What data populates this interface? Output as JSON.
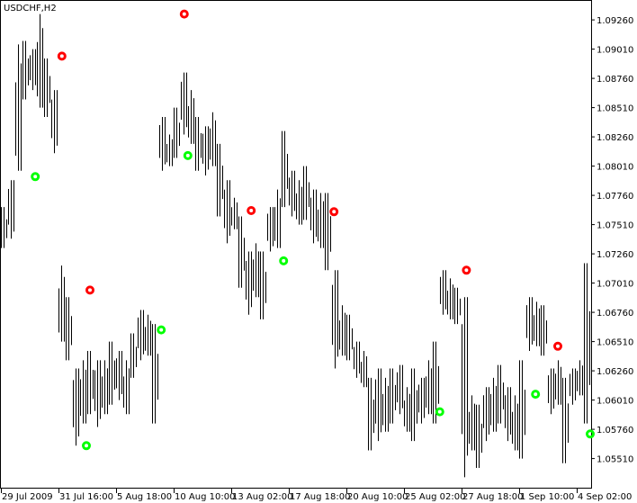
{
  "chart_data": {
    "type": "ohlc",
    "title": "USDCHF,H2",
    "symbol": "USDCHF",
    "timeframe": "H2",
    "ylim": [
      1.0535,
      1.0943
    ],
    "grid": false,
    "colors": {
      "bars": "#000000",
      "sell_marker": "#ff0000",
      "buy_marker": "#00ff00",
      "background": "#ffffff"
    },
    "y_ticks": [
      "1.09260",
      "1.09010",
      "1.08760",
      "1.08510",
      "1.08260",
      "1.08010",
      "1.07760",
      "1.07510",
      "1.07260",
      "1.07010",
      "1.06760",
      "1.06510",
      "1.06260",
      "1.06010",
      "1.05760",
      "1.05510"
    ],
    "x_ticks": [
      "29 Jul 2009",
      "31 Jul 16:00",
      "5 Aug 18:00",
      "10 Aug 10:00",
      "13 Aug 02:00",
      "17 Aug 18:00",
      "20 Aug 10:00",
      "25 Aug 02:00",
      "27 Aug 18:00",
      "1 Sep 10:00",
      "4 Sep 02:00"
    ],
    "bars": [
      [
        1.0766,
        1.0731
      ],
      [
        1.0789,
        1.0739
      ],
      [
        1.0905,
        1.0797
      ],
      [
        1.0908,
        1.0858
      ],
      [
        1.0901,
        1.0866
      ],
      [
        1.0931,
        1.0851
      ],
      [
        1.0893,
        1.0843
      ],
      [
        1.0866,
        1.0812
      ],
      [
        1.0716,
        1.0651
      ],
      [
        1.0689,
        1.0635
      ],
      [
        1.0628,
        1.0562
      ],
      [
        1.0635,
        1.0581
      ],
      [
        1.0643,
        1.0589
      ],
      [
        1.0635,
        1.0578
      ],
      [
        1.0635,
        1.0589
      ],
      [
        1.0651,
        1.0597
      ],
      [
        1.0643,
        1.0601
      ],
      [
        1.0635,
        1.0589
      ],
      [
        1.0658,
        1.062
      ],
      [
        1.0678,
        1.0635
      ],
      [
        1.0674,
        1.0639
      ],
      [
        1.0666,
        1.0581
      ],
      [
        1.0843,
        1.0797
      ],
      [
        1.0828,
        1.0801
      ],
      [
        1.0851,
        1.0808
      ],
      [
        1.0881,
        1.0828
      ],
      [
        1.0866,
        1.082
      ],
      [
        1.0843,
        1.0797
      ],
      [
        1.0835,
        1.0793
      ],
      [
        1.0847,
        1.0801
      ],
      [
        1.082,
        1.0758
      ],
      [
        1.0789,
        1.0735
      ],
      [
        1.0774,
        1.0747
      ],
      [
        1.0758,
        1.0697
      ],
      [
        1.0728,
        1.0674
      ],
      [
        1.0735,
        1.0689
      ],
      [
        1.0728,
        1.067
      ],
      [
        1.0766,
        1.0728
      ],
      [
        1.0781,
        1.0731
      ],
      [
        1.0831,
        1.0766
      ],
      [
        1.0797,
        1.0758
      ],
      [
        1.0789,
        1.0751
      ],
      [
        1.0801,
        1.0755
      ],
      [
        1.0781,
        1.0735
      ],
      [
        1.0778,
        1.0731
      ],
      [
        1.0778,
        1.0712
      ],
      [
        1.0712,
        1.0628
      ],
      [
        1.0682,
        1.0639
      ],
      [
        1.0674,
        1.0635
      ],
      [
        1.0651,
        1.062
      ],
      [
        1.0643,
        1.0612
      ],
      [
        1.062,
        1.0558
      ],
      [
        1.0628,
        1.0566
      ],
      [
        1.062,
        1.0574
      ],
      [
        1.0628,
        1.0581
      ],
      [
        1.0631,
        1.0589
      ],
      [
        1.0612,
        1.0574
      ],
      [
        1.0628,
        1.0566
      ],
      [
        1.062,
        1.0581
      ],
      [
        1.0635,
        1.0589
      ],
      [
        1.0651,
        1.0581
      ],
      [
        1.0712,
        1.0674
      ],
      [
        1.0705,
        1.067
      ],
      [
        1.0697,
        1.0666
      ],
      [
        1.0689,
        1.0535
      ],
      [
        1.0605,
        1.0558
      ],
      [
        1.0597,
        1.0543
      ],
      [
        1.0612,
        1.0566
      ],
      [
        1.062,
        1.0574
      ],
      [
        1.0631,
        1.0581
      ],
      [
        1.0612,
        1.0566
      ],
      [
        1.0605,
        1.0558
      ],
      [
        1.0635,
        1.0551
      ],
      [
        1.0689,
        1.0643
      ],
      [
        1.0685,
        1.0647
      ],
      [
        1.0682,
        1.0639
      ],
      [
        1.0628,
        1.0589
      ],
      [
        1.0635,
        1.0597
      ],
      [
        1.062,
        1.0547
      ],
      [
        1.0628,
        1.0597
      ],
      [
        1.0635,
        1.0605
      ],
      [
        1.0718,
        1.0581
      ]
    ],
    "markers": [
      {
        "type": "sell",
        "bar": 25.1,
        "price": 1.0931
      },
      {
        "type": "sell",
        "bar": 8.1,
        "price": 1.0895
      },
      {
        "type": "sell",
        "bar": 12,
        "price": 1.0695
      },
      {
        "type": "sell",
        "bar": 34.4,
        "price": 1.0763
      },
      {
        "type": "sell",
        "bar": 45.9,
        "price": 1.0762
      },
      {
        "type": "sell",
        "bar": 64.3,
        "price": 1.0712
      },
      {
        "type": "sell",
        "bar": 77,
        "price": 1.0647
      },
      {
        "type": "buy",
        "bar": 4.4,
        "price": 1.0792
      },
      {
        "type": "buy",
        "bar": 11.5,
        "price": 1.0562
      },
      {
        "type": "buy",
        "bar": 21.9,
        "price": 1.0661
      },
      {
        "type": "buy",
        "bar": 25.6,
        "price": 1.081
      },
      {
        "type": "buy",
        "bar": 38.9,
        "price": 1.072
      },
      {
        "type": "buy",
        "bar": 60.6,
        "price": 1.0591
      },
      {
        "type": "buy",
        "bar": 73.9,
        "price": 1.0606
      },
      {
        "type": "buy",
        "bar": 81.5,
        "price": 1.0572
      }
    ]
  }
}
